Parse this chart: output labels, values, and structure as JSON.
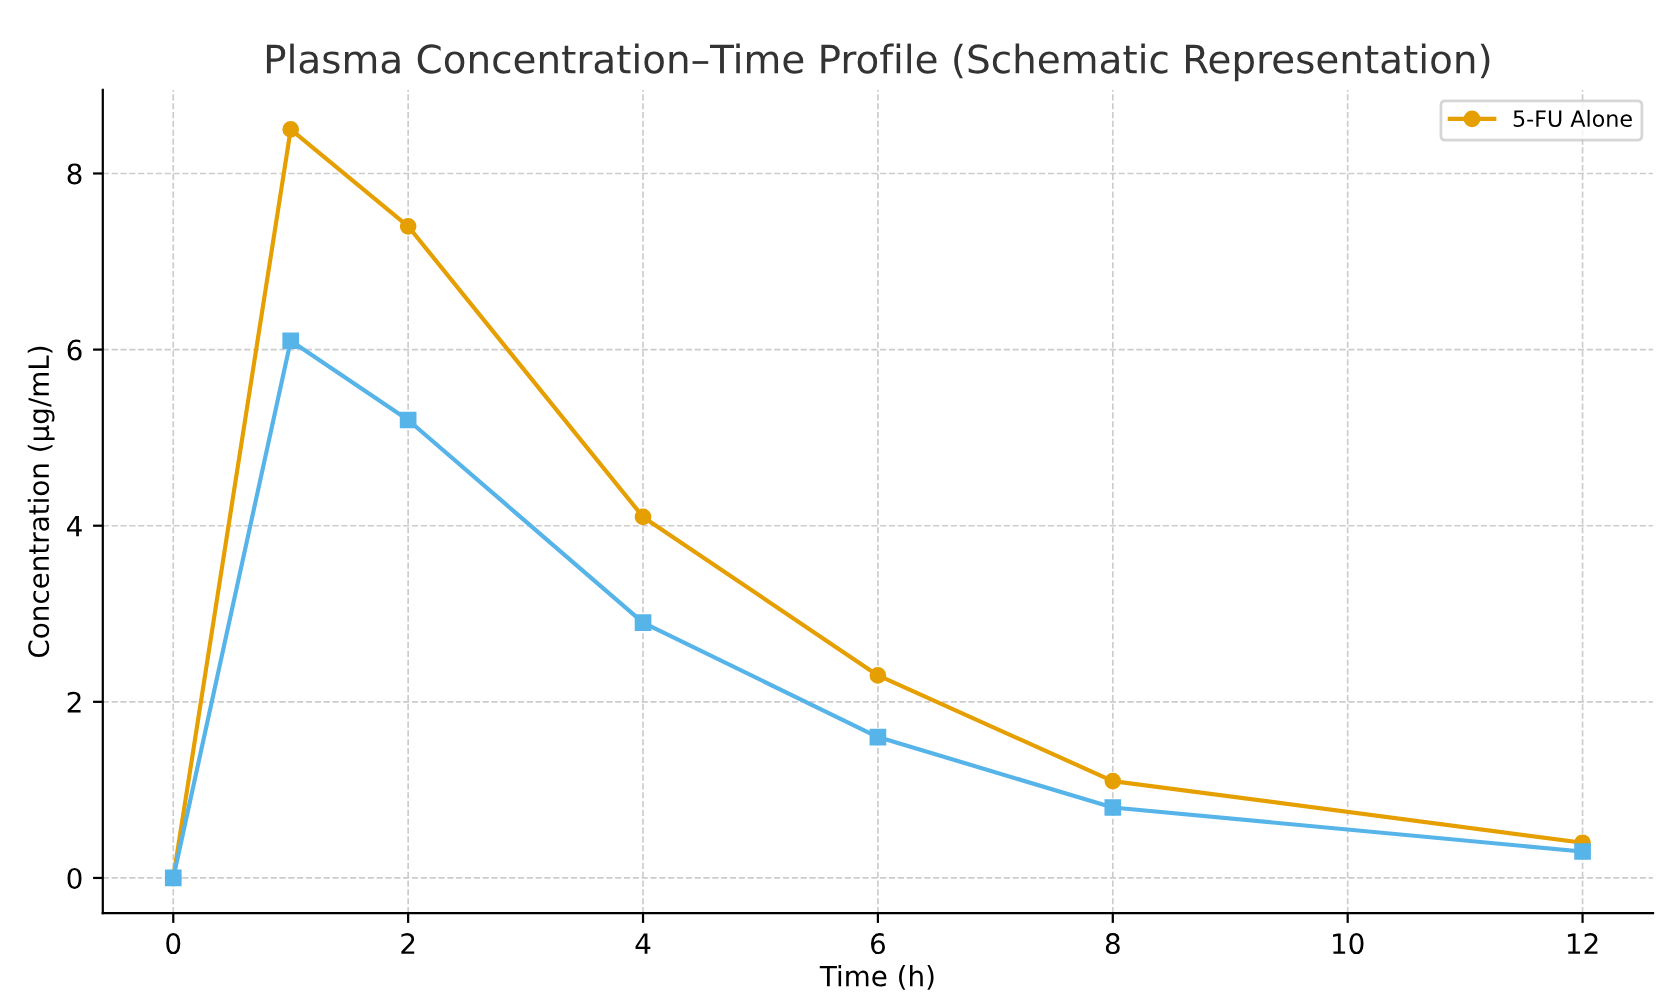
{
  "chart_data": {
    "type": "line",
    "title": "Plasma Concentration–Time Profile (Schematic Representation)",
    "xlabel": "Time (h)",
    "ylabel": "Concentration (µg/mL)",
    "x": [
      0,
      1,
      2,
      4,
      6,
      8,
      12
    ],
    "series": [
      {
        "name": "5-FU Alone",
        "color": "#e69f00",
        "marker": "circle",
        "values": [
          0,
          8.5,
          7.4,
          4.1,
          2.3,
          1.1,
          0.4
        ]
      },
      {
        "color": "#56b4e9",
        "marker": "square",
        "values": [
          0,
          6.1,
          5.2,
          2.9,
          1.6,
          0.8,
          0.3
        ]
      }
    ],
    "xlim": [
      -0.6,
      12.6
    ],
    "xticks": [
      0,
      2,
      4,
      6,
      8,
      10,
      12
    ],
    "ylim": [
      -0.4,
      8.95
    ],
    "yticks": [
      0,
      2,
      4,
      6,
      8
    ],
    "grid": true,
    "line_style": "solid",
    "legend": "top right"
  }
}
